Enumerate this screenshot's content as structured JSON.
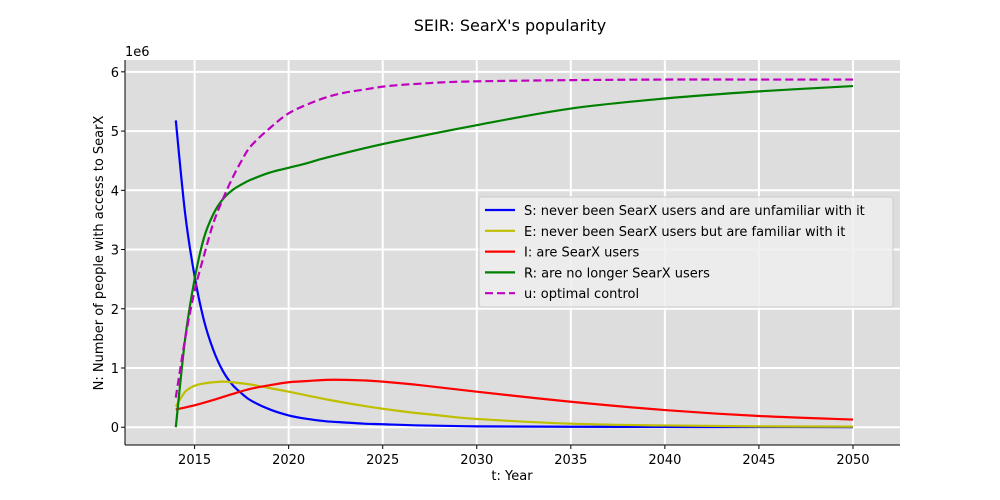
{
  "chart_data": {
    "type": "line",
    "title": "SEIR: SearX's popularity",
    "xlabel": "t: Year",
    "ylabel": "N: Number of people with access to SearX",
    "y_scale_label": "1e6",
    "xlim": [
      2011.3,
      2052.5
    ],
    "ylim": [
      -0.3,
      6.2
    ],
    "xticks": [
      2015,
      2020,
      2025,
      2030,
      2035,
      2040,
      2045,
      2050
    ],
    "yticks": [
      0,
      1,
      2,
      3,
      4,
      5,
      6
    ],
    "grid": true,
    "legend_position": "center-right",
    "series": [
      {
        "name": "S: never been SearX users and are unfamiliar with it",
        "color": "#0000ff",
        "dash": "solid",
        "x": [
          2014,
          2014.5,
          2015,
          2015.5,
          2016,
          2016.5,
          2017,
          2017.5,
          2018,
          2019,
          2020,
          2021,
          2022,
          2023,
          2024,
          2025,
          2027,
          2030,
          2035,
          2040,
          2045,
          2050
        ],
        "y": [
          5.18,
          3.6,
          2.55,
          1.8,
          1.3,
          0.95,
          0.72,
          0.57,
          0.45,
          0.3,
          0.2,
          0.14,
          0.1,
          0.08,
          0.06,
          0.05,
          0.03,
          0.015,
          0.008,
          0.005,
          0.003,
          0.002
        ]
      },
      {
        "name": "E: never been SearX users but are familiar with it",
        "color": "#bfbf00",
        "dash": "solid",
        "x": [
          2014,
          2014.5,
          2015,
          2015.5,
          2016,
          2016.5,
          2017,
          2018,
          2019,
          2020,
          2022,
          2024,
          2026,
          2028,
          2030,
          2035,
          2040,
          2045,
          2050
        ],
        "y": [
          0.35,
          0.6,
          0.7,
          0.74,
          0.76,
          0.77,
          0.76,
          0.72,
          0.66,
          0.6,
          0.47,
          0.36,
          0.27,
          0.2,
          0.14,
          0.06,
          0.03,
          0.015,
          0.01
        ]
      },
      {
        "name": "I: are SearX users",
        "color": "#ff0000",
        "dash": "solid",
        "x": [
          2014,
          2015,
          2016,
          2017,
          2018,
          2019,
          2020,
          2021,
          2022,
          2023,
          2024,
          2025,
          2027,
          2030,
          2035,
          2040,
          2045,
          2050
        ],
        "y": [
          0.3,
          0.37,
          0.46,
          0.56,
          0.65,
          0.71,
          0.76,
          0.78,
          0.8,
          0.8,
          0.79,
          0.77,
          0.71,
          0.6,
          0.43,
          0.29,
          0.19,
          0.13
        ]
      },
      {
        "name": "R: are no longer SearX users",
        "color": "#008000",
        "dash": "solid",
        "x": [
          2014,
          2014.5,
          2015,
          2015.5,
          2016,
          2016.5,
          2017,
          2017.5,
          2018,
          2019,
          2020,
          2021,
          2022,
          2025,
          2030,
          2035,
          2040,
          2045,
          2050
        ],
        "y": [
          0.0,
          1.5,
          2.5,
          3.2,
          3.6,
          3.85,
          4.0,
          4.1,
          4.18,
          4.3,
          4.38,
          4.46,
          4.55,
          4.78,
          5.1,
          5.38,
          5.55,
          5.67,
          5.76
        ]
      },
      {
        "name": "u: optimal control",
        "color": "#bf00bf",
        "dash": "dashed",
        "x": [
          2014,
          2014.5,
          2015,
          2015.5,
          2016,
          2016.5,
          2017,
          2017.5,
          2018,
          2019,
          2020,
          2021,
          2022,
          2023,
          2024,
          2025,
          2026,
          2027,
          2028,
          2030,
          2035,
          2040,
          2045,
          2050
        ],
        "y": [
          0.5,
          1.5,
          2.3,
          2.9,
          3.45,
          3.85,
          4.2,
          4.5,
          4.75,
          5.05,
          5.3,
          5.45,
          5.57,
          5.65,
          5.7,
          5.75,
          5.78,
          5.8,
          5.82,
          5.84,
          5.86,
          5.87,
          5.87,
          5.87
        ]
      }
    ]
  }
}
